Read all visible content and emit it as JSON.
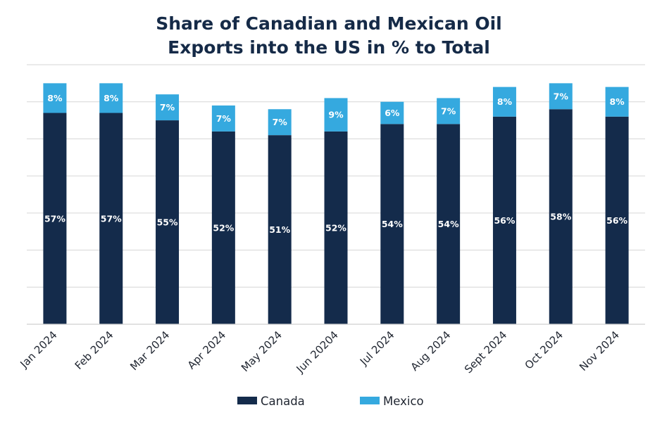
{
  "chart_data": {
    "type": "bar",
    "stacked": true,
    "title": "Share of Canadian and Mexican Oil Exports into the US in % to Total",
    "title_lines": [
      "Share of Canadian and Mexican Oil",
      "Exports into the US in % to Total"
    ],
    "xlabel": "",
    "ylabel": "",
    "ylim": [
      0,
      70
    ],
    "y_gridline_step": 10,
    "grid": true,
    "show_y_tick_labels": false,
    "legend_position": "bottom",
    "categories": [
      "Jan 2024",
      "Feb 2024",
      "Mar 2024",
      "Apr 2024",
      "May 2024",
      "Jun 20204",
      "Jul 2024",
      "Aug 2024",
      "Sept 2024",
      "Oct 2024",
      "Nov 2024"
    ],
    "series": [
      {
        "name": "Canada",
        "color": "#142b4b",
        "values": [
          57,
          57,
          55,
          52,
          51,
          52,
          54,
          54,
          56,
          58,
          56
        ],
        "labels": [
          "57%",
          "57%",
          "55%",
          "52%",
          "51%",
          "52%",
          "54%",
          "54%",
          "56%",
          "58%",
          "56%"
        ]
      },
      {
        "name": "Mexico",
        "color": "#35a9df",
        "values": [
          8,
          8,
          7,
          7,
          7,
          9,
          6,
          7,
          8,
          7,
          8
        ],
        "labels": [
          "8%",
          "8%",
          "7%",
          "7%",
          "7%",
          "9%",
          "6%",
          "7%",
          "8%",
          "7%",
          "8%"
        ]
      }
    ]
  }
}
